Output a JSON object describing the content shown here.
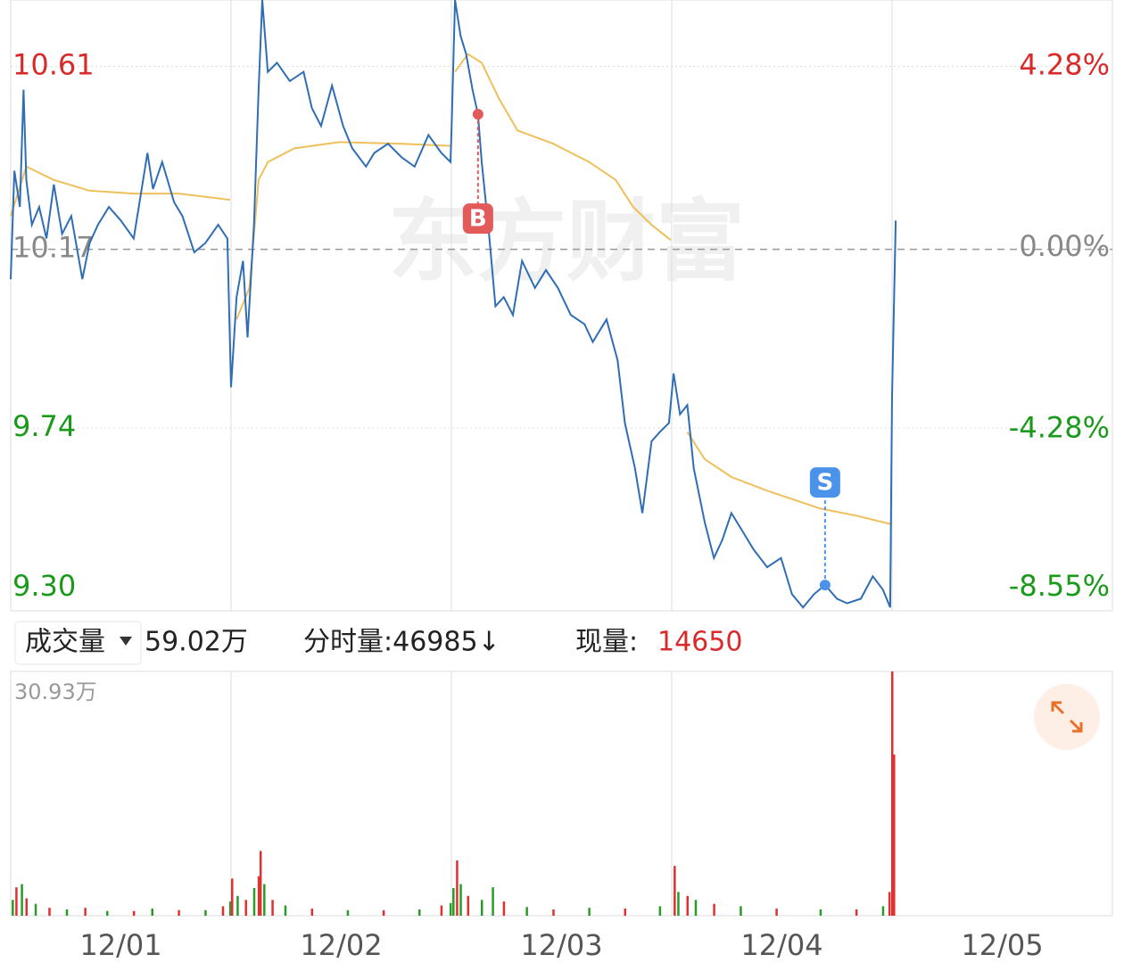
{
  "chart_data": {
    "type": "line",
    "watermark": "东方财富",
    "xlim": [
      0,
      1200
    ],
    "xticks": [
      {
        "value": 120,
        "label": "12/01"
      },
      {
        "value": 360,
        "label": "12/02"
      },
      {
        "value": 600,
        "label": "12/03"
      },
      {
        "value": 840,
        "label": "12/04"
      },
      {
        "value": 1080,
        "label": "12/05"
      }
    ],
    "x_gridlines": [
      240,
      480,
      720,
      960
    ],
    "ylim": [
      9.3,
      10.77
    ],
    "yticks": [
      10.61,
      10.17,
      9.74,
      {
        "value": 9.3,
        "label": "9.30"
      }
    ],
    "ytick_colors": [
      "#d92a2a",
      "#888888",
      "#1a9a1a",
      "#1a9a1a"
    ],
    "y2lim": [
      -8.55,
      5.84
    ],
    "y2ticks": [
      {
        "value": 4.28,
        "label": "4.28%"
      },
      {
        "value": 0,
        "label": "0.00%"
      },
      {
        "value": -4.28,
        "label": "-4.28%"
      },
      {
        "value": -8.55,
        "label": "-8.55%"
      }
    ],
    "series": [
      {
        "color": "#2f6db5",
        "x": [
          0,
          4,
          10,
          14,
          17,
          23,
          31,
          39,
          47,
          56,
          66,
          78,
          86,
          95,
          107,
          120,
          134,
          149,
          155,
          165,
          178,
          187,
          200,
          212,
          226,
          236,
          240,
          246,
          253,
          258,
          265,
          270,
          274,
          280,
          290,
          304,
          319,
          328,
          338,
          350,
          362,
          372,
          387,
          396,
          411,
          426,
          440,
          455,
          469,
          479,
          480,
          484,
          490,
          496,
          503,
          509,
          513,
          521,
          528,
          537,
          547,
          557,
          571,
          583,
          596,
          610,
          625,
          634,
          649,
          661,
          669,
          680,
          688,
          698,
          707,
          717,
          722,
          729,
          737,
          744,
          756,
          766,
          775,
          785,
          797,
          809,
          824,
          839,
          851,
          863,
          875,
          887,
          900,
          911,
          926,
          939,
          950,
          958,
          960,
          964
        ],
        "values": [
          10.098,
          10.359,
          10.272,
          10.554,
          10.337,
          10.229,
          10.272,
          10.196,
          10.326,
          10.207,
          10.25,
          10.098,
          10.185,
          10.229,
          10.272,
          10.239,
          10.196,
          10.402,
          10.315,
          10.38,
          10.283,
          10.25,
          10.163,
          10.185,
          10.229,
          10.196,
          9.838,
          10.055,
          10.142,
          9.958,
          10.229,
          10.554,
          10.77,
          10.597,
          10.619,
          10.575,
          10.597,
          10.51,
          10.467,
          10.564,
          10.467,
          10.413,
          10.369,
          10.402,
          10.424,
          10.391,
          10.369,
          10.445,
          10.402,
          10.38,
          10.445,
          10.77,
          10.684,
          10.64,
          10.554,
          10.495,
          10.38,
          10.207,
          10.033,
          10.055,
          10.012,
          10.142,
          10.077,
          10.12,
          10.077,
          10.012,
          9.99,
          9.947,
          10.001,
          9.903,
          9.752,
          9.643,
          9.535,
          9.708,
          9.73,
          9.752,
          9.871,
          9.773,
          9.795,
          9.643,
          9.513,
          9.427,
          9.47,
          9.535,
          9.492,
          9.448,
          9.405,
          9.427,
          9.34,
          9.308,
          9.34,
          9.362,
          9.329,
          9.318,
          9.329,
          9.383,
          9.351,
          9.308,
          9.817,
          10.239
        ]
      },
      {
        "color": "#efc05a",
        "x": [
          0,
          17,
          47,
          86,
          134,
          183,
          239,
          240,
          246,
          260,
          270,
          280,
          309,
          358,
          426,
          479,
          480,
          484,
          498,
          513,
          532,
          552,
          591,
          630,
          659,
          678,
          698,
          719,
          720,
          737,
          756,
          785,
          824,
          882,
          921,
          958,
          959,
          960
        ],
        "values": [
          10.25,
          10.369,
          10.337,
          10.311,
          10.304,
          10.304,
          10.289,
          null,
          10.001,
          10.077,
          10.337,
          10.38,
          10.413,
          10.428,
          10.424,
          10.419,
          null,
          10.597,
          10.64,
          10.619,
          10.532,
          10.456,
          10.424,
          10.38,
          10.337,
          10.272,
          10.229,
          10.192,
          null,
          9.73,
          9.665,
          9.622,
          9.589,
          9.546,
          9.529,
          9.509,
          null,
          10.131
        ]
      }
    ],
    "markers": [
      {
        "label": "B",
        "x": 509,
        "value": 10.495,
        "color": "#e35a5a"
      },
      {
        "label": "S",
        "x": 887,
        "value": 9.362,
        "color": "#4b93ea"
      }
    ],
    "volume": {
      "type": "bar",
      "header_label": "成交量",
      "total": "59.02万",
      "minute_volume": "分时量:46985↓",
      "current_label": "现量:",
      "current_value": "14650",
      "ylim": [
        0,
        30.93
      ],
      "yticks": [
        {
          "value": 30.93,
          "label": "30.93万"
        }
      ],
      "x": [
        2,
        6,
        12,
        17,
        27,
        42,
        61,
        81,
        105,
        134,
        154,
        183,
        212,
        231,
        239,
        241,
        247,
        256,
        265,
        270,
        272,
        276,
        285,
        299,
        328,
        367,
        406,
        445,
        469,
        479,
        482,
        486,
        490,
        498,
        513,
        525,
        537,
        562,
        591,
        630,
        669,
        707,
        723,
        727,
        737,
        746,
        766,
        795,
        834,
        882,
        921,
        950,
        957,
        960,
        962
      ],
      "values": [
        2.0,
        3.6,
        4.0,
        2.2,
        1.5,
        1.0,
        0.8,
        1.0,
        0.6,
        0.6,
        0.9,
        0.7,
        0.7,
        1.2,
        1.8,
        4.7,
        2.5,
        2.0,
        3.5,
        5.0,
        8.2,
        4.0,
        2.0,
        1.3,
        0.9,
        0.7,
        0.7,
        0.8,
        1.3,
        1.6,
        3.5,
        7.0,
        4.0,
        2.5,
        2.0,
        3.6,
        1.8,
        1.1,
        0.8,
        1.0,
        0.9,
        1.2,
        6.3,
        3.0,
        2.5,
        2.0,
        1.5,
        1.2,
        0.9,
        0.8,
        0.8,
        1.2,
        3.0,
        30.93,
        20.4
      ],
      "bar_colors": [
        "#2a9a2a",
        "#e03030",
        "#2a9a2a",
        "#e03030",
        "#2a9a2a",
        "#e03030",
        "#2a9a2a",
        "#e03030",
        "#2a9a2a",
        "#e03030",
        "#2a9a2a",
        "#e03030",
        "#2a9a2a",
        "#e03030",
        "#2a9a2a",
        "#e03030",
        "#2a9a2a",
        "#e03030",
        "#2a9a2a",
        "#e03030",
        "#e03030",
        "#2a9a2a",
        "#e03030",
        "#2a9a2a",
        "#e03030",
        "#2a9a2a",
        "#e03030",
        "#2a9a2a",
        "#e03030",
        "#2a9a2a",
        "#2a9a2a",
        "#e03030",
        "#2a9a2a",
        "#e03030",
        "#2a9a2a",
        "#2a9a2a",
        "#e03030",
        "#2a9a2a",
        "#e03030",
        "#2a9a2a",
        "#e03030",
        "#2a9a2a",
        "#e03030",
        "#2a9a2a",
        "#e03030",
        "#2a9a2a",
        "#e03030",
        "#2a9a2a",
        "#e03030",
        "#2a9a2a",
        "#e03030",
        "#2a9a2a",
        "#e03030",
        "#e03030",
        "#e03030"
      ]
    }
  }
}
